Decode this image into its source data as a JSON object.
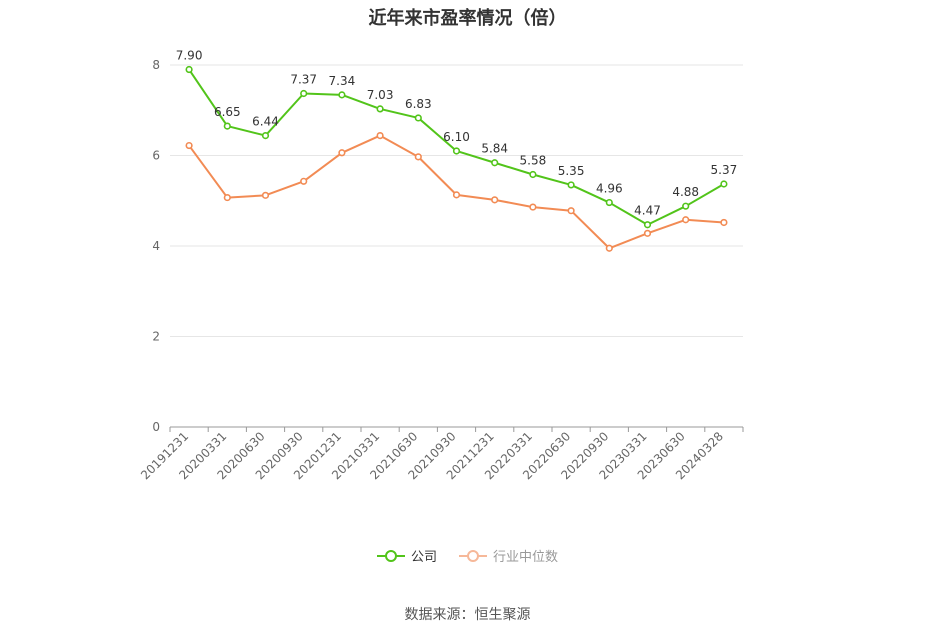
{
  "chart_data": {
    "type": "line",
    "title": "近年来市盈率情况（倍）",
    "categories": [
      "20191231",
      "20200331",
      "20200630",
      "20200930",
      "20201231",
      "20210331",
      "20210630",
      "20210930",
      "20211231",
      "20220331",
      "20220630",
      "20220930",
      "20230331",
      "20230630",
      "20240328"
    ],
    "series": [
      {
        "name": "公司",
        "color": "#52c41a",
        "values": [
          7.9,
          6.65,
          6.44,
          7.37,
          7.34,
          7.03,
          6.83,
          6.1,
          5.84,
          5.58,
          5.35,
          4.96,
          4.47,
          4.88,
          5.37
        ],
        "labels": [
          "7.90",
          "6.65",
          "6.44",
          "7.37",
          "7.34",
          "7.03",
          "6.83",
          "6.10",
          "5.84",
          "5.58",
          "5.35",
          "4.96",
          "4.47",
          "4.88",
          "5.37"
        ]
      },
      {
        "name": "行业中位数",
        "color": "#f28b54",
        "values": [
          6.22,
          5.07,
          5.12,
          5.43,
          6.06,
          6.44,
          5.97,
          5.13,
          5.02,
          4.86,
          4.78,
          3.95,
          4.28,
          4.58,
          4.52
        ]
      }
    ],
    "yticks": [
      0,
      2,
      4,
      6,
      8
    ],
    "ylim": [
      0,
      8
    ],
    "grid": true,
    "legend_position": "bottom-center"
  },
  "source": "数据来源：恒生聚源"
}
